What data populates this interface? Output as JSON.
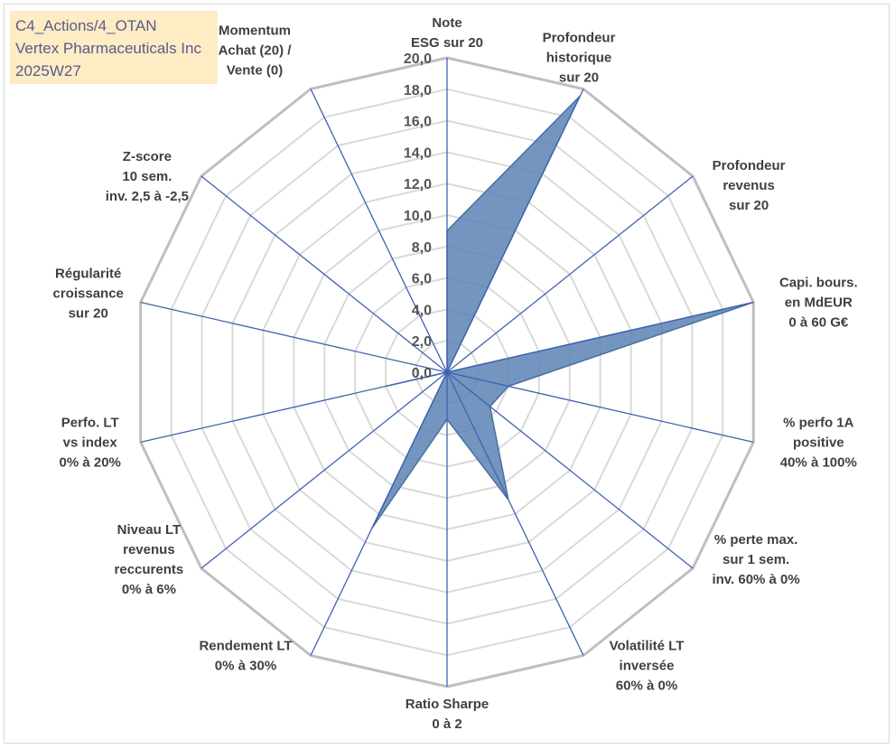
{
  "title_box": {
    "line1": "C4_Actions/4_OTAN",
    "line2": "Vertex Pharmaceuticals Inc",
    "line3": "2025W27"
  },
  "chart_data": {
    "type": "radar",
    "scale_max": 20,
    "tick_step": 2,
    "tick_labels": [
      "0,0",
      "2,0",
      "4,0",
      "6,0",
      "8,0",
      "10,0",
      "12,0",
      "14,0",
      "16,0",
      "18,0",
      "20,0"
    ],
    "axes": [
      {
        "label": [
          "Note",
          "ESG sur 20"
        ],
        "value": 9.0
      },
      {
        "label": [
          "Profondeur",
          "historique",
          "sur 20"
        ],
        "value": 19.5
      },
      {
        "label": [
          "Profondeur",
          "revenus",
          "sur 20"
        ],
        "value": 0.0
      },
      {
        "label": [
          "Capi. bours.",
          "en MdEUR",
          "0 à 60 G€"
        ],
        "value": 20.0
      },
      {
        "label": [
          "% perfo 1A",
          "positive",
          "40% à 100%"
        ],
        "value": 4.0
      },
      {
        "label": [
          "% perte max.",
          "sur 1 sem.",
          "inv. 60% à 0%"
        ],
        "value": 3.5
      },
      {
        "label": [
          "Volatilité LT",
          "inversée",
          "60% à 0%"
        ],
        "value": 9.0
      },
      {
        "label": [
          "Ratio Sharpe",
          "0 à 2"
        ],
        "value": 3.0
      },
      {
        "label": [
          "Rendement LT",
          "0% à 30%"
        ],
        "value": 11.0
      },
      {
        "label": [
          "Niveau LT",
          "revenus",
          "reccurents",
          "0% à 6%"
        ],
        "value": 0.0
      },
      {
        "label": [
          "Perfo. LT",
          "vs index",
          "0% à 20%"
        ],
        "value": 4.0
      },
      {
        "label": [
          "Régularité",
          "croissance",
          "sur 20"
        ],
        "value": 0.0
      },
      {
        "label": [
          "Z-score",
          "10 sem.",
          "inv. 2,5 à -2,5"
        ],
        "value": 0.0
      },
      {
        "label": [
          "Momentum",
          "Achat (20) /",
          "Vente (0)"
        ],
        "value": 0.0
      }
    ],
    "colors": {
      "fill": "#5a82b4",
      "stroke": "#4a6fa0",
      "spokes": "#3f63b0",
      "grid_outer": "#bfbfbf",
      "grid_inner": "#d9d9d9"
    }
  }
}
